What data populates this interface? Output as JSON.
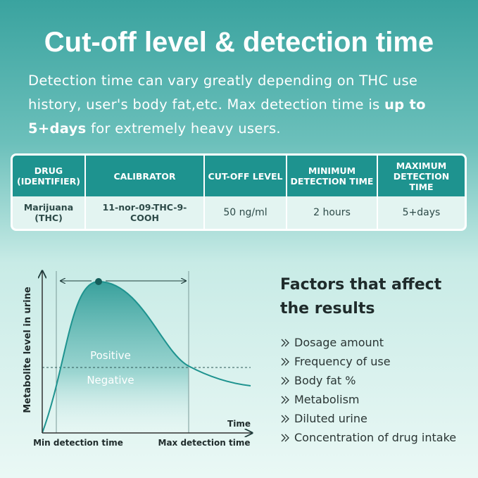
{
  "header": {
    "title": "Cut-off level & detection time",
    "description": [
      "Detection time can vary greatly depending on THC use history, user's body fat,etc. Max detection time is ",
      "up to 5+days",
      " for extremely heavy users."
    ]
  },
  "table": {
    "headers": [
      "DRUG (IDENTIFIER)",
      "CALIBRATOR",
      "CUT-OFF LEVEL",
      "MINIMUM DETECTION TIME",
      "MAXIMUM DETECTION TIME"
    ],
    "rows": [
      [
        "Marijuana (THC)",
        "11-nor-09-THC-9-COOH",
        "50 ng/ml",
        "2 hours",
        "5+days"
      ]
    ]
  },
  "diagram": {
    "y_label": "Metabolite level in urine",
    "x_label": "Time",
    "positive": "Positive",
    "negative": "Negative",
    "min_label": "Min detection time",
    "max_label": "Max detection time"
  },
  "factors": {
    "title": "Factors that affect the results",
    "items": [
      "Dosage amount",
      "Frequency of use",
      "Body fat %",
      "Metabolism",
      "Diluted urine",
      "Concentration of drug intake"
    ]
  }
}
